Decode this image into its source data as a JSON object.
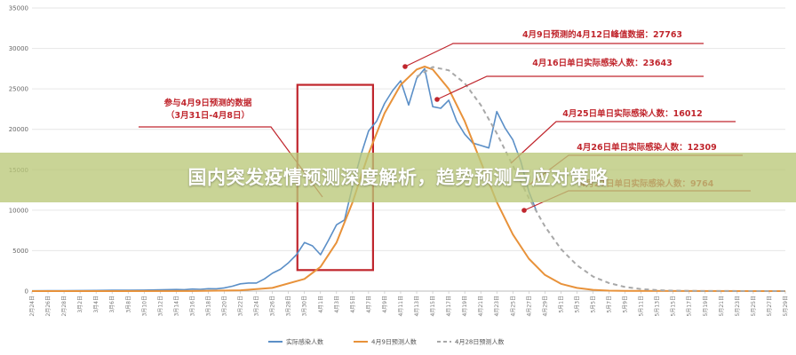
{
  "banner": {
    "title": "国内突发疫情预测深度解析，趋势预测与应对策略"
  },
  "colors": {
    "actual": "#5b8fc7",
    "forecast_0409": "#e8923a",
    "forecast_0428": "#a8a8a8",
    "annotation": "#c0262d",
    "banner": "#b9c878"
  },
  "chart_data": {
    "type": "line",
    "ylim": [
      0,
      35000
    ],
    "yticks": [
      0,
      5000,
      10000,
      15000,
      20000,
      25000,
      30000,
      35000
    ],
    "x": [
      "2月24日",
      "2月26日",
      "2月28日",
      "3月2日",
      "3月4日",
      "3月6日",
      "3月8日",
      "3月10日",
      "3月12日",
      "3月14日",
      "3月16日",
      "3月18日",
      "3月20日",
      "3月22日",
      "3月24日",
      "3月26日",
      "3月28日",
      "3月30日",
      "4月1日",
      "4月3日",
      "4月5日",
      "4月7日",
      "4月9日",
      "4月11日",
      "4月13日",
      "4月15日",
      "4月17日",
      "4月19日",
      "4月21日",
      "4月23日",
      "4月25日",
      "4月27日",
      "4月29日",
      "5月1日",
      "5月3日",
      "5月5日",
      "5月7日",
      "5月9日",
      "5月11日",
      "5月13日",
      "5月15日",
      "5月17日",
      "5月19日",
      "5月21日",
      "5月23日",
      "5月25日",
      "5月27日",
      "5月29日"
    ],
    "series": [
      {
        "name": "实际感染人数",
        "values": [
          null,
          null,
          null,
          null,
          null,
          null,
          null,
          null,
          null,
          null,
          null,
          null,
          null,
          null,
          null,
          null,
          null,
          null,
          null,
          null,
          null,
          null,
          null,
          null,
          null,
          null,
          null,
          null,
          null,
          null,
          null,
          null,
          null,
          null,
          null,
          null,
          null,
          null,
          null,
          null,
          null,
          null,
          null,
          null,
          null,
          null,
          null,
          null
        ],
        "points": [
          [
            0,
            30
          ],
          [
            1,
            50
          ],
          [
            2,
            60
          ],
          [
            3,
            70
          ],
          [
            4,
            80
          ],
          [
            5,
            100
          ],
          [
            6,
            110
          ],
          [
            7,
            120
          ],
          [
            8,
            150
          ],
          [
            9,
            200
          ],
          [
            9.5,
            180
          ],
          [
            10,
            250
          ],
          [
            10.5,
            220
          ],
          [
            11,
            300
          ],
          [
            11.5,
            280
          ],
          [
            12,
            400
          ],
          [
            12.5,
            600
          ],
          [
            13,
            900
          ],
          [
            13.5,
            1000
          ],
          [
            14,
            1000
          ],
          [
            14.5,
            1500
          ],
          [
            15,
            2200
          ],
          [
            15.5,
            2700
          ],
          [
            16,
            3500
          ],
          [
            16.5,
            4500
          ],
          [
            17,
            6000
          ],
          [
            17.5,
            5600
          ],
          [
            18,
            4500
          ],
          [
            18.5,
            6300
          ],
          [
            19,
            8200
          ],
          [
            19.5,
            8800
          ],
          [
            20,
            13000
          ],
          [
            20.5,
            16700
          ],
          [
            21,
            19800
          ],
          [
            21.5,
            21000
          ],
          [
            22,
            23200
          ],
          [
            22.5,
            24800
          ],
          [
            23,
            26000
          ],
          [
            23.5,
            23000
          ],
          [
            24,
            26300
          ],
          [
            24.5,
            27500
          ],
          [
            25,
            22800
          ],
          [
            25.5,
            22600
          ],
          [
            26,
            23600
          ],
          [
            26.5,
            21000
          ],
          [
            27,
            19400
          ],
          [
            27.5,
            18300
          ],
          [
            28,
            18000
          ],
          [
            28.5,
            17700
          ],
          [
            29,
            22200
          ],
          [
            29.5,
            20200
          ],
          [
            30,
            18700
          ],
          [
            30.5,
            16012
          ],
          [
            31,
            12309
          ],
          [
            31.5,
            9764
          ]
        ]
      },
      {
        "name": "4月9日预测人数",
        "points": [
          [
            0,
            0
          ],
          [
            10,
            10
          ],
          [
            13,
            100
          ],
          [
            15,
            400
          ],
          [
            17,
            1500
          ],
          [
            18,
            3000
          ],
          [
            19,
            6000
          ],
          [
            20,
            11000
          ],
          [
            21,
            17000
          ],
          [
            22,
            22000
          ],
          [
            23,
            25500
          ],
          [
            24,
            27400
          ],
          [
            24.5,
            27763
          ],
          [
            25,
            27400
          ],
          [
            26,
            25000
          ],
          [
            27,
            21000
          ],
          [
            28,
            16000
          ],
          [
            29,
            11000
          ],
          [
            30,
            7000
          ],
          [
            31,
            4000
          ],
          [
            32,
            2000
          ],
          [
            33,
            900
          ],
          [
            34,
            400
          ],
          [
            35,
            150
          ],
          [
            36,
            60
          ],
          [
            37,
            20
          ],
          [
            47,
            0
          ]
        ]
      },
      {
        "name": "4月28日预测人数",
        "points": [
          [
            24,
            26500
          ],
          [
            25,
            27700
          ],
          [
            26,
            27300
          ],
          [
            27,
            25700
          ],
          [
            28,
            23000
          ],
          [
            29,
            19500
          ],
          [
            30,
            15500
          ],
          [
            31,
            11500
          ],
          [
            32,
            8000
          ],
          [
            33,
            5200
          ],
          [
            34,
            3200
          ],
          [
            35,
            1800
          ],
          [
            36,
            1000
          ],
          [
            37,
            500
          ],
          [
            38,
            250
          ],
          [
            39,
            120
          ],
          [
            40,
            50
          ],
          [
            42,
            10
          ],
          [
            47,
            0
          ]
        ]
      }
    ],
    "highlight_box": {
      "x_from": "4月1日",
      "x_to": "4月7日"
    },
    "annotations": [
      {
        "text": "参与4月9日预测的数据",
        "text2": "（3月31日-4月8日）"
      },
      {
        "text": "4月9日预测的4月12日峰值数据：27763"
      },
      {
        "text": "4月16日单日实际感染人数：23643"
      },
      {
        "text": "4月25日单日实际感染人数：16012"
      },
      {
        "text": "4月26日单日实际感染人数：12309"
      },
      {
        "text": "4月27日单日实际感染人数：9764"
      }
    ],
    "legend": [
      "实际感染人数",
      "4月9日预测人数",
      "4月28日预测人数"
    ],
    "legend_position": "bottom"
  }
}
